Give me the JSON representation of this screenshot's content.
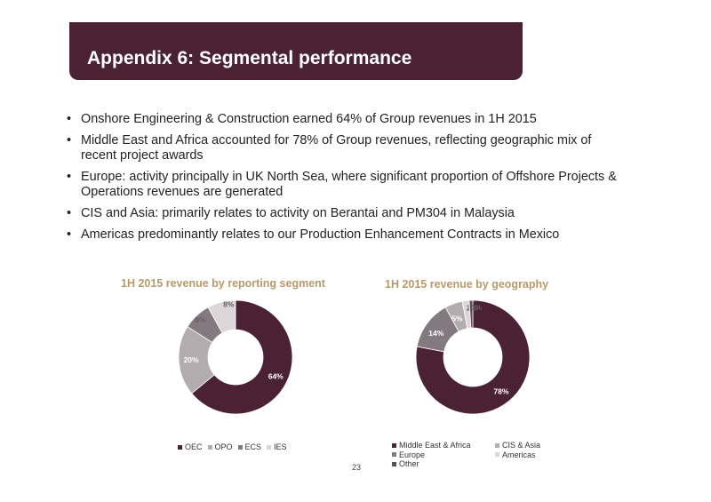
{
  "header": {
    "title": "Appendix 6: Segmental performance"
  },
  "bullets": [
    "Onshore Engineering & Construction earned 64% of Group revenues in 1H 2015",
    "Middle East and Africa accounted for 78% of Group revenues, reflecting geographic mix of recent project awards",
    "Europe: activity principally in UK North Sea, where significant proportion of Offshore Projects & Operations revenues are generated",
    "CIS and Asia: primarily relates to activity on Berantai and PM304 in Malaysia",
    "Americas predominantly relates to our Production Enhancement Contracts in Mexico"
  ],
  "bullet_symbol": "•",
  "page_number": "23",
  "chart_data": [
    {
      "type": "pie",
      "title": "1H 2015 revenue by reporting segment",
      "categories": [
        "OEC",
        "OPO",
        "ECS",
        "IES"
      ],
      "values": [
        64,
        20,
        8,
        8
      ],
      "labels": [
        "64%",
        "20%",
        "8%",
        "8%"
      ],
      "colors": [
        "#4a2234",
        "#b3acaf",
        "#837a7f",
        "#dcd6d9"
      ],
      "legend": "bottom"
    },
    {
      "type": "pie",
      "title": "1H 2015 revenue by geography",
      "categories": [
        "Middle East & Africa",
        "Europe",
        "CIS & Asia",
        "Americas",
        "Other"
      ],
      "values": [
        78,
        14,
        5,
        2,
        1
      ],
      "labels": [
        "78%",
        "14%",
        "5%",
        "2%",
        "1%"
      ],
      "colors": [
        "#4a2234",
        "#837a7f",
        "#b3acaf",
        "#dcd6d9",
        "#5e4b56"
      ],
      "legend": "bottom"
    }
  ]
}
